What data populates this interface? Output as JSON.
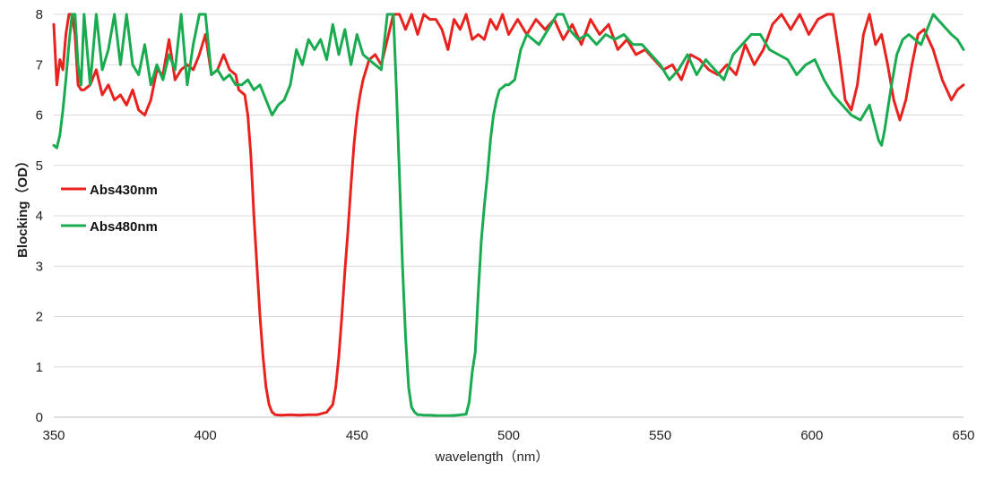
{
  "chart_data": {
    "type": "line",
    "title": "",
    "xlabel": "wavelength（nm）",
    "ylabel": "Blocking（OD）",
    "xlim": [
      350,
      650
    ],
    "ylim": [
      0,
      8
    ],
    "x_ticks": [
      350,
      400,
      450,
      500,
      550,
      600,
      650
    ],
    "y_ticks": [
      0,
      1,
      2,
      3,
      4,
      5,
      6,
      7,
      8
    ],
    "grid": "horizontal",
    "legend_placement": "left",
    "series": [
      {
        "name": "Abs430nm",
        "color": "#e8231f",
        "x": [
          350,
          351,
          352,
          353,
          354,
          355,
          356,
          357,
          358,
          359,
          360,
          362,
          364,
          366,
          368,
          370,
          372,
          374,
          376,
          378,
          380,
          382,
          384,
          386,
          388,
          390,
          392,
          394,
          396,
          398,
          400,
          402,
          404,
          406,
          408,
          410,
          411,
          412,
          413,
          414,
          415,
          416,
          417,
          418,
          419,
          420,
          421,
          422,
          423,
          425,
          428,
          431,
          434,
          437,
          440,
          442,
          443,
          444,
          445,
          446,
          447,
          448,
          449,
          450,
          451,
          452,
          453,
          454,
          456,
          458,
          460,
          462,
          464,
          466,
          468,
          470,
          472,
          474,
          476,
          478,
          480,
          482,
          484,
          486,
          488,
          490,
          492,
          494,
          496,
          498,
          500,
          503,
          506,
          509,
          512,
          515,
          518,
          521,
          524,
          527,
          530,
          533,
          536,
          539,
          542,
          545,
          548,
          551,
          554,
          557,
          560,
          563,
          566,
          569,
          572,
          575,
          578,
          581,
          584,
          587,
          590,
          593,
          596,
          599,
          602,
          605,
          607,
          609,
          611,
          613,
          615,
          617,
          619,
          621,
          623,
          625,
          627,
          629,
          631,
          633,
          635,
          637,
          640,
          643,
          646,
          648,
          650
        ],
        "y": [
          7.8,
          6.6,
          7.1,
          6.9,
          7.6,
          8.0,
          8.0,
          7.6,
          6.6,
          6.5,
          6.5,
          6.6,
          6.9,
          6.4,
          6.6,
          6.3,
          6.4,
          6.2,
          6.5,
          6.1,
          6.0,
          6.3,
          6.9,
          6.8,
          7.5,
          6.7,
          6.9,
          7.0,
          6.9,
          7.2,
          7.6,
          6.8,
          6.9,
          7.2,
          6.9,
          6.8,
          6.5,
          6.45,
          6.4,
          6.0,
          5.2,
          4.0,
          3.0,
          2.0,
          1.2,
          0.6,
          0.25,
          0.1,
          0.05,
          0.04,
          0.05,
          0.04,
          0.05,
          0.05,
          0.1,
          0.25,
          0.6,
          1.2,
          2.0,
          2.9,
          3.7,
          4.6,
          5.4,
          6.0,
          6.4,
          6.7,
          6.9,
          7.1,
          7.2,
          7.0,
          7.5,
          8.0,
          8.0,
          7.7,
          8.0,
          7.6,
          8.0,
          7.9,
          7.9,
          7.7,
          7.3,
          7.9,
          7.7,
          8.0,
          7.5,
          7.6,
          7.5,
          7.9,
          7.7,
          8.0,
          7.6,
          7.9,
          7.6,
          7.9,
          7.7,
          7.9,
          7.5,
          7.8,
          7.4,
          7.9,
          7.6,
          7.8,
          7.3,
          7.5,
          7.2,
          7.3,
          7.1,
          6.9,
          7.0,
          6.7,
          7.2,
          7.1,
          6.9,
          6.8,
          7.0,
          6.8,
          7.4,
          7.0,
          7.3,
          7.8,
          8.0,
          7.7,
          8.0,
          7.6,
          7.9,
          8.0,
          8.0,
          7.2,
          6.3,
          6.1,
          6.6,
          7.6,
          8.0,
          7.4,
          7.6,
          7.0,
          6.3,
          5.9,
          6.3,
          7.0,
          7.6,
          7.7,
          7.3,
          6.7,
          6.3,
          6.5,
          6.6
        ]
      },
      {
        "name": "Abs480nm",
        "color": "#1aab50",
        "x": [
          350,
          351,
          352,
          353,
          354,
          355,
          356,
          357,
          358,
          359,
          360,
          362,
          364,
          366,
          368,
          370,
          372,
          374,
          376,
          378,
          380,
          382,
          384,
          386,
          388,
          390,
          392,
          394,
          396,
          398,
          400,
          402,
          404,
          406,
          408,
          410,
          412,
          414,
          416,
          418,
          420,
          422,
          424,
          426,
          428,
          430,
          432,
          434,
          436,
          438,
          440,
          442,
          444,
          446,
          448,
          450,
          452,
          454,
          456,
          458,
          460,
          461,
          462,
          463,
          464,
          465,
          466,
          467,
          468,
          469,
          470,
          471,
          472,
          474,
          477,
          480,
          483,
          486,
          487,
          488,
          489,
          490,
          491,
          492,
          493,
          494,
          495,
          496,
          497,
          498,
          499,
          500,
          502,
          504,
          506,
          508,
          510,
          512,
          514,
          516,
          518,
          520,
          523,
          526,
          529,
          532,
          535,
          538,
          541,
          544,
          547,
          550,
          553,
          556,
          559,
          562,
          565,
          568,
          571,
          574,
          577,
          580,
          583,
          586,
          589,
          592,
          595,
          598,
          601,
          604,
          607,
          610,
          613,
          616,
          619,
          622,
          623,
          624,
          626,
          628,
          630,
          632,
          634,
          636,
          638,
          640,
          643,
          646,
          648,
          650
        ],
        "y": [
          5.4,
          5.35,
          5.6,
          6.1,
          6.7,
          7.4,
          8.0,
          8.0,
          7.0,
          6.6,
          8.0,
          6.6,
          8.0,
          6.9,
          7.3,
          8.0,
          7.0,
          8.0,
          7.0,
          6.8,
          7.4,
          6.6,
          7.0,
          6.7,
          7.2,
          6.9,
          8.0,
          6.6,
          7.4,
          8.0,
          8.0,
          6.8,
          6.9,
          6.7,
          6.8,
          6.6,
          6.6,
          6.7,
          6.5,
          6.6,
          6.3,
          6.0,
          6.2,
          6.3,
          6.6,
          7.3,
          7.0,
          7.5,
          7.3,
          7.5,
          7.1,
          7.8,
          7.2,
          7.7,
          7.0,
          7.6,
          7.2,
          7.1,
          7.0,
          6.9,
          8.0,
          8.0,
          8.0,
          6.5,
          4.8,
          3.0,
          1.6,
          0.6,
          0.2,
          0.1,
          0.05,
          0.05,
          0.04,
          0.04,
          0.03,
          0.03,
          0.04,
          0.06,
          0.3,
          0.9,
          1.3,
          2.5,
          3.5,
          4.2,
          4.8,
          5.5,
          6.0,
          6.3,
          6.5,
          6.55,
          6.6,
          6.6,
          6.7,
          7.3,
          7.6,
          7.5,
          7.4,
          7.6,
          7.8,
          8.0,
          8.0,
          7.7,
          7.5,
          7.6,
          7.4,
          7.6,
          7.5,
          7.6,
          7.4,
          7.4,
          7.2,
          7.0,
          6.7,
          6.9,
          7.2,
          6.8,
          7.1,
          6.9,
          6.7,
          7.2,
          7.4,
          7.6,
          7.6,
          7.3,
          7.2,
          7.1,
          6.8,
          7.0,
          7.1,
          6.7,
          6.4,
          6.2,
          6.0,
          5.9,
          6.2,
          5.5,
          5.4,
          5.7,
          6.5,
          7.2,
          7.5,
          7.6,
          7.5,
          7.4,
          7.7,
          8.0,
          7.8,
          7.6,
          7.5,
          7.3
        ]
      }
    ]
  }
}
